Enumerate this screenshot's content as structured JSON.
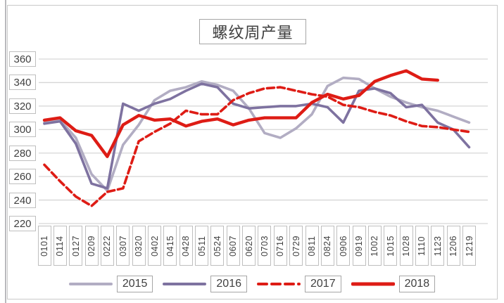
{
  "title": "螺纹周产量",
  "chart_data": {
    "type": "line",
    "title": "螺纹周产量",
    "xlabel": "",
    "ylabel": "",
    "ylim": [
      220,
      360
    ],
    "yticks": [
      360,
      340,
      320,
      300,
      280,
      260,
      240,
      220
    ],
    "grid": true,
    "legend_position": "bottom",
    "categories": [
      "0101",
      "0114",
      "0127",
      "0209",
      "0222",
      "0307",
      "0320",
      "0402",
      "0415",
      "0428",
      "0511",
      "0524",
      "0607",
      "0620",
      "0703",
      "0716",
      "0729",
      "0811",
      "0824",
      "0906",
      "0919",
      "1002",
      "1015",
      "1028",
      "1110",
      "1123",
      "1206",
      "1219"
    ],
    "series": [
      {
        "name": "2015",
        "color": "#b2adc3",
        "style": "solid",
        "width": 3.6,
        "values": [
          306,
          308,
          293,
          262,
          248,
          287,
          304,
          325,
          333,
          336,
          341,
          338,
          333,
          318,
          297,
          293,
          301,
          313,
          337,
          344,
          343,
          335,
          328,
          323,
          319,
          316,
          311,
          306
        ]
      },
      {
        "name": "2016",
        "color": "#7e72a0",
        "style": "solid",
        "width": 3.6,
        "values": [
          305,
          307,
          288,
          254,
          250,
          322,
          316,
          322,
          326,
          333,
          339,
          336,
          322,
          318,
          319,
          320,
          320,
          322,
          319,
          306,
          333,
          335,
          331,
          319,
          321,
          306,
          300,
          285
        ]
      },
      {
        "name": "2017",
        "color": "#de1c15",
        "style": "dashed",
        "width": 3.6,
        "values": [
          270,
          256,
          243,
          235,
          247,
          250,
          290,
          298,
          305,
          316,
          313,
          313,
          325,
          331,
          335,
          336,
          333,
          330,
          328,
          321,
          319,
          315,
          312,
          307,
          303,
          302,
          300,
          298
        ]
      },
      {
        "name": "2018",
        "color": "#de1c15",
        "style": "solid",
        "width": 4.4,
        "values": [
          308,
          310,
          299,
          295,
          277,
          304,
          312,
          308,
          309,
          303,
          307,
          309,
          304,
          308,
          310,
          310,
          310,
          323,
          330,
          326,
          329,
          341,
          346,
          350,
          343,
          342,
          null,
          null
        ]
      }
    ]
  },
  "colors": {
    "gridline": "#d6d6d6",
    "frame_border": "#c9c9c9",
    "label_border": "#bfbfbf",
    "text": "#404040"
  }
}
